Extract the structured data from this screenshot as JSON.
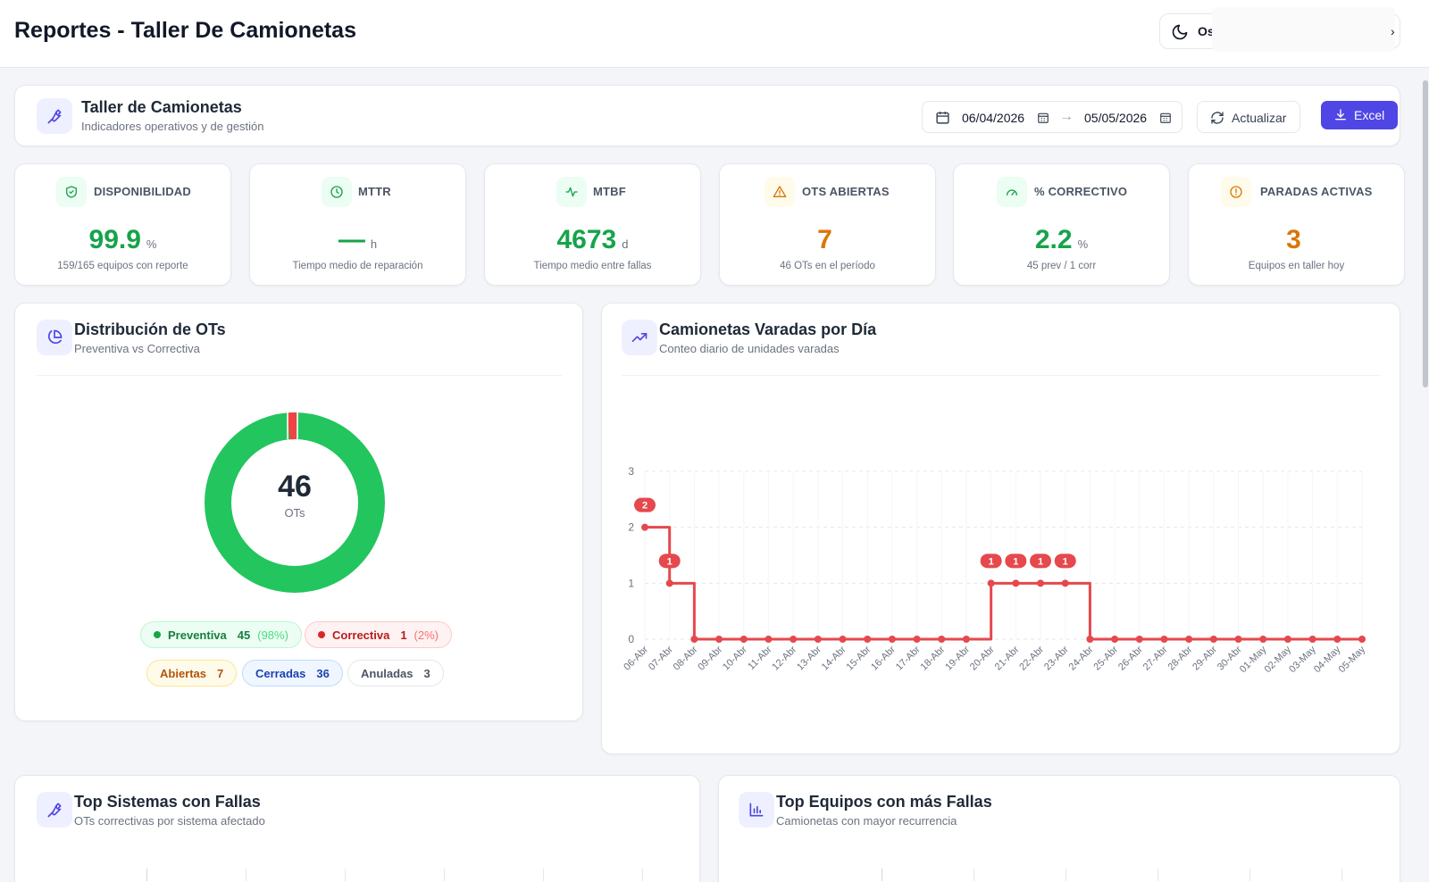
{
  "page": {
    "title": "Reportes - Taller De Camionetas",
    "user_initial": "O",
    "user_rest": "s"
  },
  "header": {
    "title": "Taller de Camionetas",
    "subtitle": "Indicadores operativos y de gestión",
    "date_from": "06/04/2026",
    "date_to": "05/05/2026",
    "date_sep": "→",
    "refresh_label": "Actualizar",
    "excel_label": "Excel"
  },
  "kpis": [
    {
      "label": "DISPONIBILIDAD",
      "value": "99.9",
      "unit": "%",
      "sub": "159/165 equipos con reporte",
      "color": "#16a34a",
      "icon": "shield-check-icon"
    },
    {
      "label": "MTTR",
      "value": "—",
      "unit": "h",
      "sub": "Tiempo medio de reparación",
      "color": "#16a34a",
      "icon": "clock-icon"
    },
    {
      "label": "MTBF",
      "value": "4673",
      "unit": "d",
      "sub": "Tiempo medio entre fallas",
      "color": "#16a34a",
      "icon": "pulse-icon"
    },
    {
      "label": "OTS ABIERTAS",
      "value": "7",
      "unit": "",
      "sub": "46 OTs en el período",
      "color": "#d97706",
      "icon": "warning-icon"
    },
    {
      "label": "% CORRECTIVO",
      "value": "2.2",
      "unit": "%",
      "sub": "45 prev / 1 corr",
      "color": "#16a34a",
      "icon": "gauge-icon"
    },
    {
      "label": "PARADAS ACTIVAS",
      "value": "3",
      "unit": "",
      "sub": "Equipos en taller hoy",
      "color": "#d97706",
      "icon": "alert-circle-icon"
    }
  ],
  "distribution": {
    "title": "Distribución de OTs",
    "subtitle": "Preventiva vs Correctiva",
    "total": "46",
    "total_label": "OTs",
    "preventiva": {
      "label": "Preventiva",
      "count": "45",
      "pct": "(98%)",
      "color": "#22c55e"
    },
    "correctiva": {
      "label": "Correctiva",
      "count": "1",
      "pct": "(2%)",
      "color": "#ef4444"
    },
    "abiertas": {
      "label": "Abiertas",
      "count": "7"
    },
    "cerradas": {
      "label": "Cerradas",
      "count": "36"
    },
    "anuladas": {
      "label": "Anuladas",
      "count": "3"
    }
  },
  "stranded": {
    "title": "Camionetas Varadas por Día",
    "subtitle": "Conteo diario de unidades varadas"
  },
  "top_systems": {
    "title": "Top Sistemas con Fallas",
    "subtitle": "OTs correctivas por sistema afectado"
  },
  "top_equipment": {
    "title": "Top Equipos con más Fallas",
    "subtitle": "Camionetas con mayor recurrencia"
  },
  "chart_data": {
    "type": "line",
    "title": "Camionetas Varadas por Día",
    "x": [
      "06-Abr",
      "07-Abr",
      "08-Abr",
      "09-Abr",
      "10-Abr",
      "11-Abr",
      "12-Abr",
      "13-Abr",
      "14-Abr",
      "15-Abr",
      "16-Abr",
      "17-Abr",
      "18-Abr",
      "19-Abr",
      "20-Abr",
      "21-Abr",
      "22-Abr",
      "23-Abr",
      "24-Abr",
      "25-Abr",
      "26-Abr",
      "27-Abr",
      "28-Abr",
      "29-Abr",
      "30-Abr",
      "01-May",
      "02-May",
      "03-May",
      "04-May",
      "05-May"
    ],
    "values": [
      2,
      1,
      0,
      0,
      0,
      0,
      0,
      0,
      0,
      0,
      0,
      0,
      0,
      0,
      1,
      1,
      1,
      1,
      0,
      0,
      0,
      0,
      0,
      0,
      0,
      0,
      0,
      0,
      0,
      0
    ],
    "ylim": [
      0,
      3
    ],
    "yticks": [
      "0",
      "1",
      "2",
      "3"
    ],
    "step": true,
    "grid": true,
    "color": "#e5484d"
  }
}
